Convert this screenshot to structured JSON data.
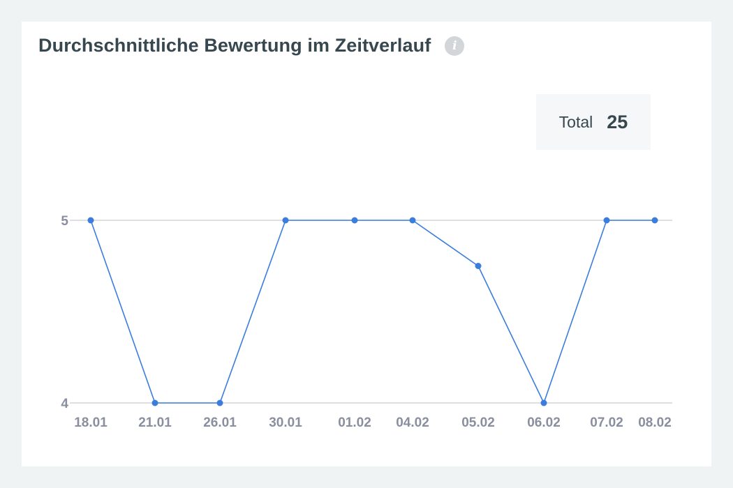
{
  "header": {
    "title": "Durchschnittliche Bewertung im Zeitverlauf",
    "info_icon": "info-icon"
  },
  "total": {
    "label": "Total",
    "value": "25"
  },
  "colors": {
    "line": "#3b7ddd",
    "grid": "#c9ccd1"
  },
  "chart_data": {
    "type": "line",
    "title": "Durchschnittliche Bewertung im Zeitverlauf",
    "xlabel": "",
    "ylabel": "",
    "categories": [
      "18.01",
      "21.01",
      "26.01",
      "30.01",
      "01.02",
      "04.02",
      "05.02",
      "06.02",
      "07.02",
      "08.02"
    ],
    "series": [
      {
        "values": [
          5,
          4,
          4,
          5,
          5,
          5,
          4.75,
          4,
          5,
          5
        ]
      }
    ],
    "ylim": [
      4,
      5
    ],
    "yticks": [
      "4",
      "5"
    ],
    "grid": true,
    "legend": "none"
  }
}
